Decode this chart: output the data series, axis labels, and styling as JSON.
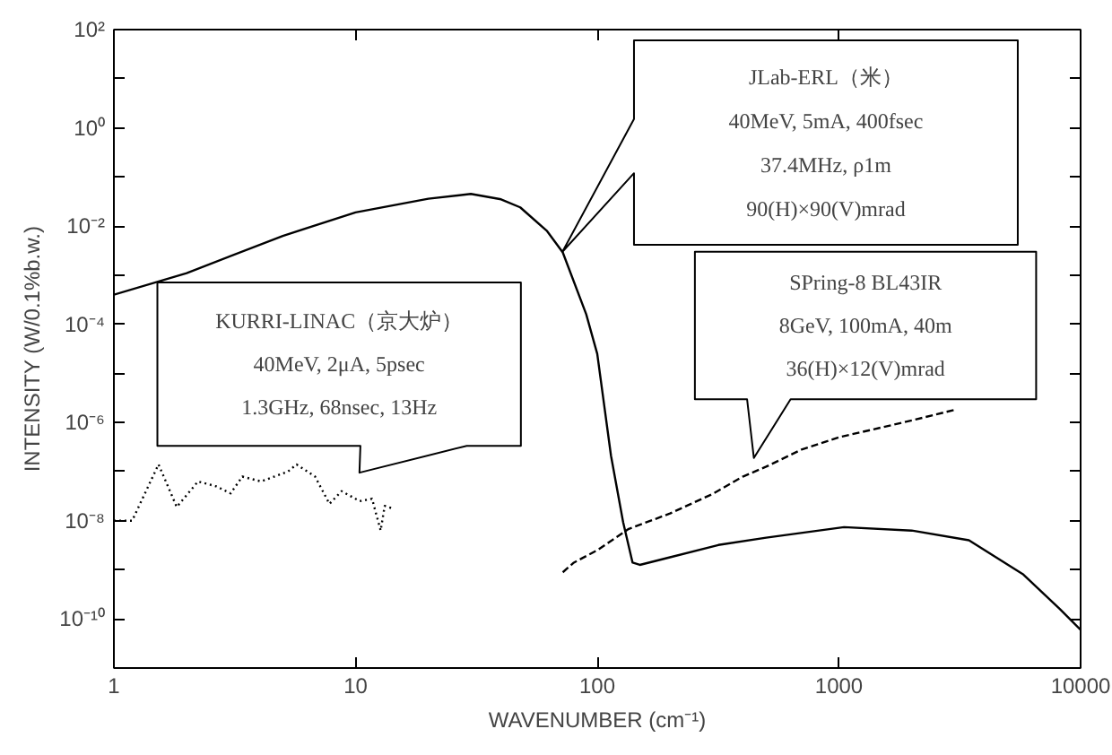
{
  "chart_data": {
    "type": "line",
    "xlabel": "WAVENUMBER (cm⁻¹)",
    "ylabel": "INTENSITY (W/0.1%b.w.)",
    "log": "xy",
    "grid": false,
    "marker": "none",
    "xlim": [
      1,
      10000
    ],
    "xticks": [
      1,
      10,
      100,
      1000,
      10000
    ],
    "ylim": [
      1e-11,
      100
    ],
    "yticks": [
      {
        "value": 100,
        "label": "10²"
      },
      {
        "value": 10,
        "label": null
      },
      {
        "value": 1,
        "label": "10⁰"
      },
      {
        "value": 0.1,
        "label": null
      },
      {
        "value": 0.01,
        "label": "10⁻²"
      },
      {
        "value": 0.001,
        "label": null
      },
      {
        "value": 0.0001,
        "label": "10⁻⁴"
      },
      {
        "value": 1e-05,
        "label": null
      },
      {
        "value": 1e-06,
        "label": "10⁻⁶"
      },
      {
        "value": 1e-07,
        "label": null
      },
      {
        "value": 1e-08,
        "label": "10⁻⁸"
      },
      {
        "value": 1e-09,
        "label": null
      },
      {
        "value": 1e-10,
        "label": "10⁻¹⁰"
      }
    ],
    "series": [
      {
        "color": "#000000",
        "line_style": "solid",
        "x": [
          1,
          2,
          5,
          10,
          20,
          30,
          40,
          48,
          62,
          72,
          90,
          100,
          114,
          128,
          140,
          150,
          200,
          317,
          500,
          1050,
          2000,
          3450,
          5800,
          8200,
          10000
        ],
        "values": [
          0.0004,
          0.0011,
          0.0063,
          0.019,
          0.036,
          0.045,
          0.035,
          0.024,
          0.0079,
          0.0029,
          0.00016,
          2.5e-05,
          2.1e-07,
          9.3e-09,
          1.4e-09,
          1.26e-09,
          1.8e-09,
          3.2e-09,
          4.5e-09,
          7.4e-09,
          6.3e-09,
          4e-09,
          8e-10,
          1.6e-10,
          6e-11
        ]
      },
      {
        "color": "#000000",
        "line_style": "dashed",
        "x": [
          72,
          80,
          100,
          135,
          200,
          300,
          400,
          500,
          700,
          1000,
          1500,
          2000,
          3000
        ],
        "values": [
          8.9e-10,
          1.4e-09,
          2.5e-09,
          6.8e-09,
          1.4e-08,
          3.5e-08,
          7.9e-08,
          1.26e-07,
          2.8e-07,
          5e-07,
          7.9e-07,
          1.1e-06,
          1.8e-06
        ]
      },
      {
        "color": "#000000",
        "line_style": "dotted",
        "x": [
          1,
          1.19,
          1.53,
          1.82,
          2.23,
          2.65,
          3.04,
          3.4,
          4.06,
          5.25,
          5.7,
          6.8,
          7.8,
          8.75,
          10.4,
          11.7,
          12.7,
          13.2,
          14.1
        ],
        "values": [
          1e-08,
          1e-08,
          1.4e-07,
          1.9e-08,
          6.3e-08,
          5e-08,
          3.6e-08,
          7.9e-08,
          6.3e-08,
          1e-07,
          1.4e-07,
          7.9e-08,
          2.2e-08,
          4e-08,
          2.5e-08,
          2.8e-08,
          6.3e-09,
          2e-08,
          1.8e-08
        ]
      }
    ],
    "annotations": [
      "JLab-ERL（米）\n40MeV, 5mA, 400fsec\n37.4MHz, ρ1m\n90(H)×90(V)mrad",
      "SPring-8 BL43IR\n8GeV, 100mA, 40m\n36(H)×12(V)mrad",
      "KURRI-LINAC（京大炉）\n40MeV, 2μA, 5psec\n1.3GHz, 68nsec, 13Hz"
    ]
  }
}
